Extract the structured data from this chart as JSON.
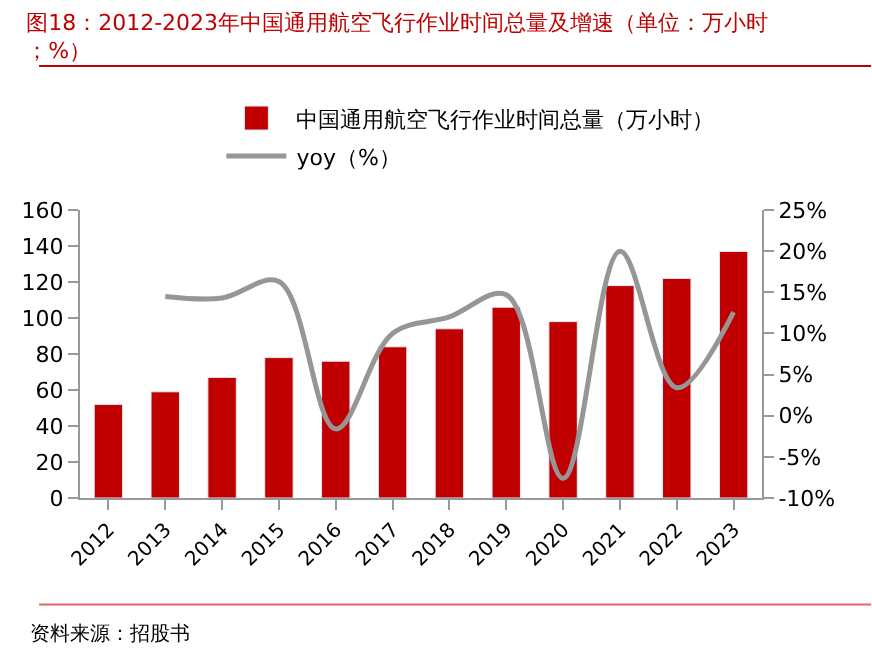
{
  "chart_data": {
    "type": "bar",
    "title": "图18：2012-2023年中国通用航空飞行作业时间总量及增速（单位：万小时；%）",
    "categories": [
      "2012",
      "2013",
      "2014",
      "2015",
      "2016",
      "2017",
      "2018",
      "2019",
      "2020",
      "2021",
      "2022",
      "2023"
    ],
    "series": [
      {
        "name": "中国通用航空飞行作业时间总量（万小时）",
        "color": "#c00000",
        "values": [
          52,
          59,
          67,
          78,
          76,
          84,
          94,
          106,
          98,
          118,
          122,
          137
        ]
      },
      {
        "name": "yoy（%）",
        "type": "line",
        "axis": "y2",
        "color": "#969696",
        "values": [
          null,
          14.5,
          14.3,
          16.3,
          -1.6,
          10.0,
          12.0,
          14.7,
          -7.6,
          20.0,
          3.4,
          12.6
        ]
      }
    ],
    "ylim": [
      0,
      160
    ],
    "yticks": [
      0,
      20,
      40,
      60,
      80,
      100,
      120,
      140,
      160
    ],
    "y2lim": [
      -10,
      25
    ],
    "y2ticks": [
      {
        "value": -10,
        "label": "-10%"
      },
      {
        "value": -5,
        "label": "-5%"
      },
      {
        "value": 0,
        "label": "0%"
      },
      {
        "value": 5,
        "label": "5%"
      },
      {
        "value": 10,
        "label": "10%"
      },
      {
        "value": 15,
        "label": "15%"
      },
      {
        "value": 20,
        "label": "20%"
      },
      {
        "value": 25,
        "label": "25%"
      }
    ],
    "legend": "top",
    "marker": "none",
    "line_style": "solid",
    "annotations": [
      "资料来源：招股书"
    ]
  }
}
